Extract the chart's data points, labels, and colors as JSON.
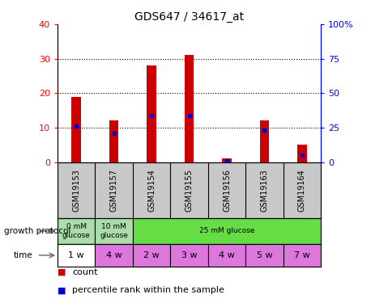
{
  "title": "GDS647 / 34617_at",
  "samples": [
    "GSM19153",
    "GSM19157",
    "GSM19154",
    "GSM19155",
    "GSM19156",
    "GSM19163",
    "GSM19164"
  ],
  "counts": [
    19,
    12,
    28,
    31,
    1,
    12,
    5
  ],
  "percentiles": [
    26,
    21,
    34,
    34,
    1,
    23,
    5
  ],
  "left_ylim": [
    0,
    40
  ],
  "right_ylim": [
    0,
    100
  ],
  "left_yticks": [
    0,
    10,
    20,
    30,
    40
  ],
  "right_yticks": [
    0,
    25,
    50,
    75,
    100
  ],
  "right_yticklabels": [
    "0",
    "25",
    "50",
    "75",
    "100%"
  ],
  "bar_color": "#cc0000",
  "percentile_color": "#0000cc",
  "growth_groups": [
    {
      "label": "0 mM\nglucose",
      "start": 0,
      "end": 1,
      "color": "#aaddaa"
    },
    {
      "label": "10 mM\nglucose",
      "start": 1,
      "end": 2,
      "color": "#aaddaa"
    },
    {
      "label": "25 mM glucose",
      "start": 2,
      "end": 7,
      "color": "#66dd44"
    }
  ],
  "time": [
    "1 w",
    "4 w",
    "2 w",
    "3 w",
    "4 w",
    "5 w",
    "7 w"
  ],
  "time_colors": [
    "#ffffff",
    "#dd77dd",
    "#dd77dd",
    "#dd77dd",
    "#dd77dd",
    "#dd77dd",
    "#dd77dd"
  ],
  "sample_bg_color": "#c8c8c8",
  "legend_red_label": "count",
  "legend_blue_label": "percentile rank within the sample",
  "title_fontsize": 10,
  "tick_fontsize": 8,
  "bar_width": 0.25
}
